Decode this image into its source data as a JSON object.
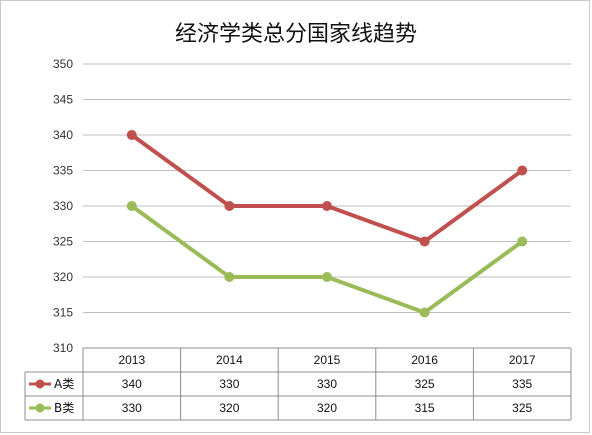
{
  "chart_data": {
    "type": "line",
    "title": "经济学类总分国家线趋势",
    "categories": [
      "2013",
      "2014",
      "2015",
      "2016",
      "2017"
    ],
    "ylim": [
      310,
      350
    ],
    "yticks": [
      "310",
      "315",
      "320",
      "325",
      "330",
      "335",
      "340",
      "345",
      "350"
    ],
    "grid": true,
    "legend": "data-table",
    "series": [
      {
        "name": "A类",
        "color": "#c0504d",
        "values": [
          340,
          330,
          330,
          325,
          335
        ],
        "labels": [
          "340",
          "330",
          "330",
          "325",
          "335"
        ]
      },
      {
        "name": "B类",
        "color": "#9bbb59",
        "values": [
          330,
          320,
          320,
          315,
          325
        ],
        "labels": [
          "330",
          "320",
          "320",
          "315",
          "325"
        ]
      }
    ]
  }
}
